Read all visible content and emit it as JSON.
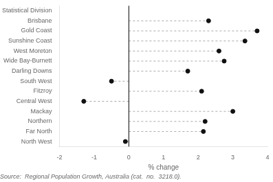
{
  "chart_data": {
    "type": "lollipop",
    "orientation": "horizontal",
    "categories": [
      "Statistical Division",
      "Brisbane",
      "Gold Coast",
      "Sunshine Coast",
      "West Moreton",
      "Wide Bay-Burnett",
      "Darling Downs",
      "South West",
      "Fitzroy",
      "Central West",
      "Mackay",
      "Northern",
      "Far North",
      "North West"
    ],
    "values": [
      null,
      2.3,
      3.7,
      3.35,
      2.6,
      2.75,
      1.7,
      -0.5,
      2.1,
      -1.3,
      3.0,
      2.2,
      2.15,
      -0.1
    ],
    "xlim": [
      -2,
      4
    ],
    "xticks": [
      -2,
      -1,
      0,
      1,
      2,
      3,
      4
    ],
    "xlabel": "% change",
    "color": "#111111",
    "line_style": "dashed",
    "grid": false,
    "source": "Source:  Regional Population Growth, Australia (cat.  no.  3218.0)."
  }
}
